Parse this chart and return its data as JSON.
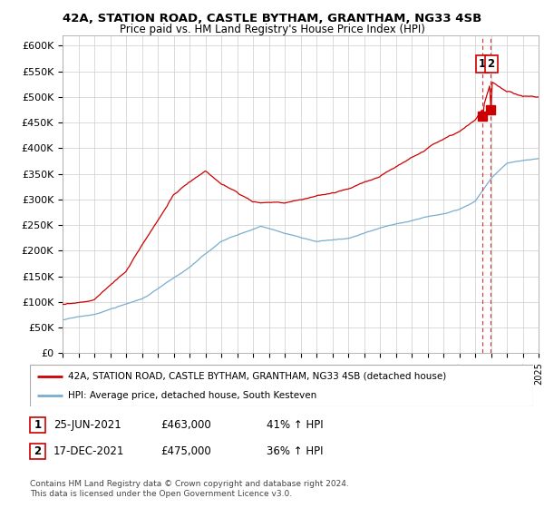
{
  "title_line1": "42A, STATION ROAD, CASTLE BYTHAM, GRANTHAM, NG33 4SB",
  "title_line2": "Price paid vs. HM Land Registry's House Price Index (HPI)",
  "ylabel_ticks": [
    "£0",
    "£50K",
    "£100K",
    "£150K",
    "£200K",
    "£250K",
    "£300K",
    "£350K",
    "£400K",
    "£450K",
    "£500K",
    "£550K",
    "£600K"
  ],
  "ytick_values": [
    0,
    50000,
    100000,
    150000,
    200000,
    250000,
    300000,
    350000,
    400000,
    450000,
    500000,
    550000,
    600000
  ],
  "ylim": [
    0,
    620000
  ],
  "xlim_start": 1995,
  "xlim_end": 2025,
  "legend_entry1": "42A, STATION ROAD, CASTLE BYTHAM, GRANTHAM, NG33 4SB (detached house)",
  "legend_entry2": "HPI: Average price, detached house, South Kesteven",
  "red_color": "#cc0000",
  "blue_color": "#7aadce",
  "dashed_line_color": "#cc0000",
  "sale1_x": 2021.48,
  "sale1_y": 463000,
  "sale2_x": 2021.96,
  "sale2_y": 475000,
  "table_rows": [
    {
      "num": "1",
      "date": "25-JUN-2021",
      "price": "£463,000",
      "hpi": "41% ↑ HPI"
    },
    {
      "num": "2",
      "date": "17-DEC-2021",
      "price": "£475,000",
      "hpi": "36% ↑ HPI"
    }
  ],
  "footnote": "Contains HM Land Registry data © Crown copyright and database right 2024.\nThis data is licensed under the Open Government Licence v3.0."
}
